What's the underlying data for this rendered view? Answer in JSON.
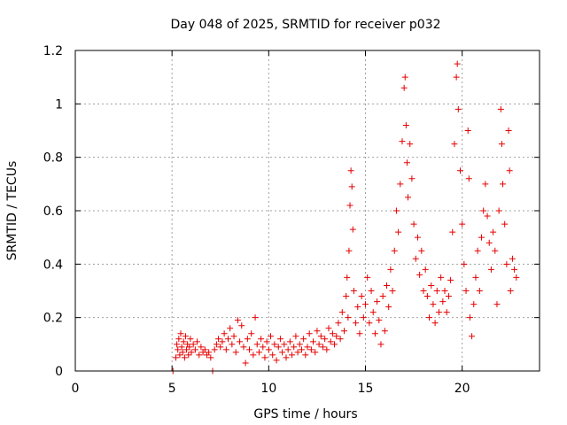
{
  "chart_data": {
    "type": "scatter",
    "title": "Day 048 of 2025, SRMTID for receiver p032",
    "xlabel": "GPS time / hours",
    "ylabel": "SRMTID / TECUs",
    "xlim": [
      0,
      24
    ],
    "ylim": [
      0,
      1.2
    ],
    "x_ticks": [
      0,
      5,
      10,
      15,
      20
    ],
    "x_tick_labels": [
      "0",
      "5",
      "10",
      "15",
      "20"
    ],
    "y_ticks": [
      0,
      0.2,
      0.4,
      0.6,
      0.8,
      1.0,
      1.2
    ],
    "y_tick_labels": [
      "0",
      "0.2",
      "0.4",
      "0.6",
      "0.8",
      "1",
      "1.2"
    ],
    "grid": true,
    "marker": "+",
    "color": "#e60000",
    "series": [
      {
        "name": "SRMTID",
        "points": [
          [
            5.05,
            0.0
          ],
          [
            7.1,
            0.0
          ],
          [
            5.2,
            0.05
          ],
          [
            5.25,
            0.1
          ],
          [
            5.3,
            0.08
          ],
          [
            5.35,
            0.12
          ],
          [
            5.4,
            0.06
          ],
          [
            5.45,
            0.14
          ],
          [
            5.5,
            0.09
          ],
          [
            5.55,
            0.07
          ],
          [
            5.6,
            0.11
          ],
          [
            5.65,
            0.05
          ],
          [
            5.7,
            0.13
          ],
          [
            5.75,
            0.08
          ],
          [
            5.8,
            0.1
          ],
          [
            5.85,
            0.06
          ],
          [
            5.9,
            0.09
          ],
          [
            5.95,
            0.12
          ],
          [
            6.0,
            0.07
          ],
          [
            6.1,
            0.1
          ],
          [
            6.2,
            0.08
          ],
          [
            6.3,
            0.11
          ],
          [
            6.4,
            0.06
          ],
          [
            6.5,
            0.09
          ],
          [
            6.6,
            0.07
          ],
          [
            6.7,
            0.08
          ],
          [
            6.8,
            0.06
          ],
          [
            6.9,
            0.07
          ],
          [
            7.0,
            0.05
          ],
          [
            7.2,
            0.08
          ],
          [
            7.3,
            0.1
          ],
          [
            7.4,
            0.12
          ],
          [
            7.5,
            0.09
          ],
          [
            7.6,
            0.11
          ],
          [
            7.7,
            0.14
          ],
          [
            7.8,
            0.08
          ],
          [
            7.9,
            0.12
          ],
          [
            8.0,
            0.16
          ],
          [
            8.1,
            0.1
          ],
          [
            8.2,
            0.13
          ],
          [
            8.3,
            0.07
          ],
          [
            8.4,
            0.19
          ],
          [
            8.5,
            0.11
          ],
          [
            8.6,
            0.17
          ],
          [
            8.7,
            0.09
          ],
          [
            8.8,
            0.03
          ],
          [
            8.9,
            0.12
          ],
          [
            9.0,
            0.08
          ],
          [
            9.1,
            0.14
          ],
          [
            9.2,
            0.06
          ],
          [
            9.3,
            0.2
          ],
          [
            9.4,
            0.1
          ],
          [
            9.5,
            0.07
          ],
          [
            9.6,
            0.12
          ],
          [
            9.7,
            0.09
          ],
          [
            9.8,
            0.05
          ],
          [
            9.9,
            0.11
          ],
          [
            10.0,
            0.08
          ],
          [
            10.1,
            0.13
          ],
          [
            10.2,
            0.06
          ],
          [
            10.3,
            0.1
          ],
          [
            10.4,
            0.04
          ],
          [
            10.5,
            0.09
          ],
          [
            10.6,
            0.12
          ],
          [
            10.7,
            0.07
          ],
          [
            10.8,
            0.1
          ],
          [
            10.9,
            0.05
          ],
          [
            11.0,
            0.08
          ],
          [
            11.1,
            0.11
          ],
          [
            11.2,
            0.06
          ],
          [
            11.3,
            0.09
          ],
          [
            11.4,
            0.13
          ],
          [
            11.5,
            0.07
          ],
          [
            11.6,
            0.1
          ],
          [
            11.7,
            0.08
          ],
          [
            11.8,
            0.12
          ],
          [
            11.9,
            0.06
          ],
          [
            12.0,
            0.09
          ],
          [
            12.1,
            0.14
          ],
          [
            12.2,
            0.08
          ],
          [
            12.3,
            0.11
          ],
          [
            12.4,
            0.07
          ],
          [
            12.5,
            0.15
          ],
          [
            12.6,
            0.1
          ],
          [
            12.7,
            0.13
          ],
          [
            12.8,
            0.09
          ],
          [
            12.9,
            0.12
          ],
          [
            13.0,
            0.08
          ],
          [
            13.1,
            0.16
          ],
          [
            13.2,
            0.11
          ],
          [
            13.3,
            0.14
          ],
          [
            13.4,
            0.1
          ],
          [
            13.5,
            0.13
          ],
          [
            13.6,
            0.18
          ],
          [
            13.7,
            0.12
          ],
          [
            13.8,
            0.22
          ],
          [
            13.9,
            0.15
          ],
          [
            14.0,
            0.28
          ],
          [
            14.05,
            0.35
          ],
          [
            14.1,
            0.2
          ],
          [
            14.15,
            0.45
          ],
          [
            14.2,
            0.62
          ],
          [
            14.25,
            0.75
          ],
          [
            14.3,
            0.69
          ],
          [
            14.35,
            0.53
          ],
          [
            14.4,
            0.3
          ],
          [
            14.5,
            0.18
          ],
          [
            14.6,
            0.24
          ],
          [
            14.7,
            0.14
          ],
          [
            14.8,
            0.28
          ],
          [
            14.9,
            0.2
          ],
          [
            15.0,
            0.25
          ],
          [
            15.1,
            0.35
          ],
          [
            15.2,
            0.18
          ],
          [
            15.3,
            0.3
          ],
          [
            15.4,
            0.22
          ],
          [
            15.5,
            0.14
          ],
          [
            15.6,
            0.26
          ],
          [
            15.7,
            0.19
          ],
          [
            15.8,
            0.1
          ],
          [
            15.9,
            0.28
          ],
          [
            16.0,
            0.15
          ],
          [
            16.1,
            0.32
          ],
          [
            16.2,
            0.24
          ],
          [
            16.3,
            0.38
          ],
          [
            16.4,
            0.3
          ],
          [
            16.5,
            0.45
          ],
          [
            16.6,
            0.6
          ],
          [
            16.7,
            0.52
          ],
          [
            16.8,
            0.7
          ],
          [
            16.9,
            0.86
          ],
          [
            17.0,
            1.06
          ],
          [
            17.05,
            1.1
          ],
          [
            17.1,
            0.92
          ],
          [
            17.15,
            0.78
          ],
          [
            17.2,
            0.65
          ],
          [
            17.3,
            0.85
          ],
          [
            17.4,
            0.72
          ],
          [
            17.5,
            0.55
          ],
          [
            17.6,
            0.42
          ],
          [
            17.7,
            0.5
          ],
          [
            17.8,
            0.36
          ],
          [
            17.9,
            0.45
          ],
          [
            18.0,
            0.3
          ],
          [
            18.1,
            0.38
          ],
          [
            18.2,
            0.28
          ],
          [
            18.3,
            0.2
          ],
          [
            18.4,
            0.32
          ],
          [
            18.5,
            0.25
          ],
          [
            18.6,
            0.18
          ],
          [
            18.7,
            0.3
          ],
          [
            18.8,
            0.22
          ],
          [
            18.9,
            0.35
          ],
          [
            19.0,
            0.26
          ],
          [
            19.1,
            0.3
          ],
          [
            19.2,
            0.22
          ],
          [
            19.3,
            0.28
          ],
          [
            19.4,
            0.34
          ],
          [
            19.5,
            0.52
          ],
          [
            19.6,
            0.85
          ],
          [
            19.7,
            1.1
          ],
          [
            19.75,
            1.15
          ],
          [
            19.8,
            0.98
          ],
          [
            19.9,
            0.75
          ],
          [
            20.0,
            0.55
          ],
          [
            20.1,
            0.4
          ],
          [
            20.2,
            0.3
          ],
          [
            20.3,
            0.9
          ],
          [
            20.35,
            0.72
          ],
          [
            20.4,
            0.2
          ],
          [
            20.5,
            0.13
          ],
          [
            20.6,
            0.25
          ],
          [
            20.7,
            0.35
          ],
          [
            20.8,
            0.45
          ],
          [
            20.9,
            0.3
          ],
          [
            21.0,
            0.5
          ],
          [
            21.1,
            0.6
          ],
          [
            21.2,
            0.7
          ],
          [
            21.3,
            0.58
          ],
          [
            21.4,
            0.48
          ],
          [
            21.5,
            0.38
          ],
          [
            21.6,
            0.52
          ],
          [
            21.7,
            0.45
          ],
          [
            21.8,
            0.25
          ],
          [
            21.9,
            0.6
          ],
          [
            22.0,
            0.98
          ],
          [
            22.05,
            0.85
          ],
          [
            22.1,
            0.7
          ],
          [
            22.2,
            0.55
          ],
          [
            22.3,
            0.4
          ],
          [
            22.4,
            0.9
          ],
          [
            22.45,
            0.75
          ],
          [
            22.5,
            0.3
          ],
          [
            22.6,
            0.42
          ],
          [
            22.7,
            0.38
          ],
          [
            22.8,
            0.35
          ]
        ]
      }
    ]
  }
}
